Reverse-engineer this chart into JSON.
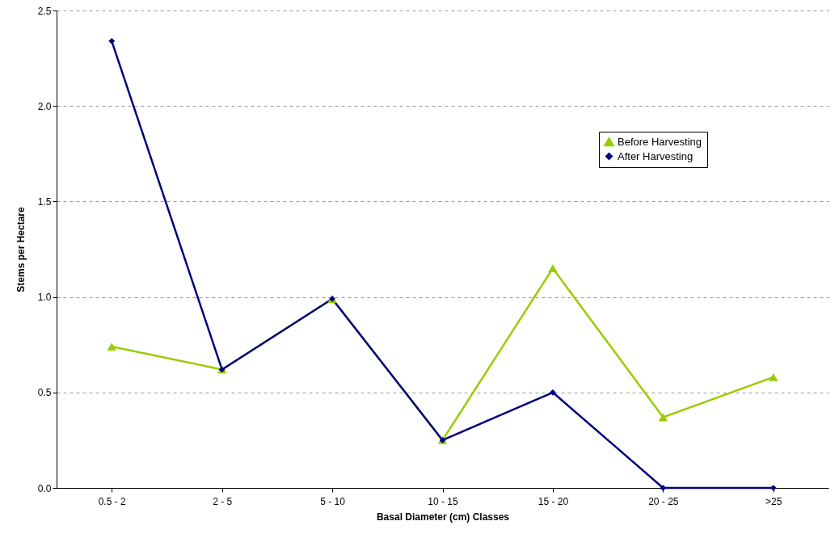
{
  "chart_data": {
    "type": "line",
    "xlabel": "Basal Diameter (cm) Classes",
    "ylabel": "Stems per Hectare",
    "categories": [
      "0.5 - 2",
      "2 - 5",
      "5 - 10",
      "10 - 15",
      "15 - 20",
      "20 - 25",
      ">25"
    ],
    "series": [
      {
        "name": "Before Harvesting",
        "color": "#99cc00",
        "marker": "triangle",
        "values": [
          0.74,
          0.62,
          0.99,
          0.25,
          1.15,
          0.37,
          0.58
        ]
      },
      {
        "name": "After Harvesting",
        "color": "#000080",
        "marker": "diamond",
        "values": [
          2.34,
          0.62,
          0.99,
          0.25,
          0.5,
          0,
          0
        ]
      }
    ],
    "ylim": [
      0,
      2.5
    ],
    "yticks": [
      {
        "value": 0,
        "label": "0.0"
      },
      {
        "value": 0.5,
        "label": "0.5"
      },
      {
        "value": 1,
        "label": "1.0"
      },
      {
        "value": 1.5,
        "label": "1.5"
      },
      {
        "value": 2,
        "label": "2.0"
      },
      {
        "value": 2.5,
        "label": "2.5"
      }
    ],
    "grid": "y",
    "legend": "top right",
    "line_style": "solid"
  }
}
